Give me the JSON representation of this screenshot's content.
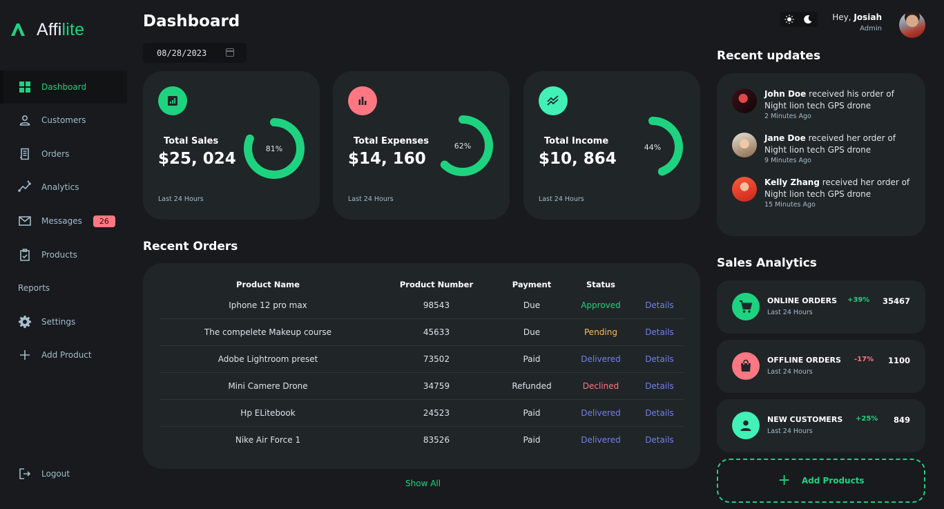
{
  "brand": {
    "name_a": "Affi",
    "name_b": "lite"
  },
  "sidebar": {
    "items": [
      {
        "label": "Dashboard",
        "icon": "grid-icon",
        "active": true
      },
      {
        "label": "Customers",
        "icon": "person-icon"
      },
      {
        "label": "Orders",
        "icon": "receipt-icon"
      },
      {
        "label": "Analytics",
        "icon": "insights-icon"
      },
      {
        "label": "Messages",
        "icon": "mail-icon",
        "badge": "26"
      },
      {
        "label": "Products",
        "icon": "inventory-icon"
      },
      {
        "label": "Reports"
      },
      {
        "label": "Settings",
        "icon": "gear-icon"
      },
      {
        "label": "Add Product",
        "icon": "plus-icon"
      }
    ],
    "logout": "Logout"
  },
  "header": {
    "title": "Dashboard",
    "date": "08/28/2023",
    "greeting": "Hey,",
    "user": "Josiah",
    "role": "Admin"
  },
  "insights": [
    {
      "label": "Total Sales",
      "value": "$25, 024",
      "percent": "81%",
      "fraction": 0.81,
      "footer": "Last 24 Hours",
      "icon": "analytics-icon",
      "color": "#1ed380"
    },
    {
      "label": "Total Expenses",
      "value": "$14, 160",
      "percent": "62%",
      "fraction": 0.62,
      "footer": "Last 24 Hours",
      "icon": "bar-chart-icon",
      "color": "#ff7782"
    },
    {
      "label": "Total Income",
      "value": "$10, 864",
      "percent": "44%",
      "fraction": 0.44,
      "footer": "Last 24 Hours",
      "icon": "stacked-line-icon",
      "color": "#41f1b6"
    }
  ],
  "orders": {
    "title": "Recent Orders",
    "columns": [
      "Product Name",
      "Product Number",
      "Payment",
      "Status",
      ""
    ],
    "rows": [
      {
        "name": "Iphone 12 pro max",
        "number": "98543",
        "payment": "Due",
        "status": "Approved",
        "status_class": "st-approved",
        "action": "Details"
      },
      {
        "name": "The compelete Makeup course",
        "number": "45633",
        "payment": "Due",
        "status": "Pending",
        "status_class": "st-pending",
        "action": "Details"
      },
      {
        "name": "Adobe Lightroom preset",
        "number": "73502",
        "payment": "Paid",
        "status": "Delivered",
        "status_class": "st-delivered",
        "action": "Details"
      },
      {
        "name": "Mini Camere Drone",
        "number": "34759",
        "payment": "Refunded",
        "status": "Declined",
        "status_class": "st-declined",
        "action": "Details"
      },
      {
        "name": "Hp ELitebook",
        "number": "24523",
        "payment": "Paid",
        "status": "Delivered",
        "status_class": "st-delivered",
        "action": "Details"
      },
      {
        "name": "Nike Air Force 1",
        "number": "83526",
        "payment": "Paid",
        "status": "Delivered",
        "status_class": "st-delivered",
        "action": "Details"
      }
    ],
    "show_all": "Show All"
  },
  "updates": {
    "title": "Recent updates",
    "items": [
      {
        "name": "John Doe",
        "text": " received his order of Night lion tech GPS drone",
        "time": "2 Minutes Ago"
      },
      {
        "name": "Jane Doe",
        "text": " received her order of Night lion tech GPS drone",
        "time": "9 Minutes Ago"
      },
      {
        "name": "Kelly Zhang",
        "text": " received her order of Night lion tech GPS drone",
        "time": "15 Minutes Ago"
      }
    ]
  },
  "analytics": {
    "title": "Sales Analytics",
    "items": [
      {
        "title": "ONLINE ORDERS",
        "sub": "Last 24 Hours",
        "pct": "+39%",
        "num": "35467",
        "icon": "cart-icon",
        "color": "#1ed380",
        "pct_color": "#1ed380"
      },
      {
        "title": "OFFLINE ORDERS",
        "sub": "Last 24 Hours",
        "pct": "-17%",
        "num": "1100",
        "icon": "shopping-bag-icon",
        "color": "#ff7782",
        "pct_color": "#ff7782"
      },
      {
        "title": "NEW CUSTOMERS",
        "sub": "Last 24 Hours",
        "pct": "+25%",
        "num": "849",
        "icon": "person-icon",
        "color": "#41f1b6",
        "pct_color": "#1ed380"
      }
    ],
    "add_label": "Add Products"
  }
}
